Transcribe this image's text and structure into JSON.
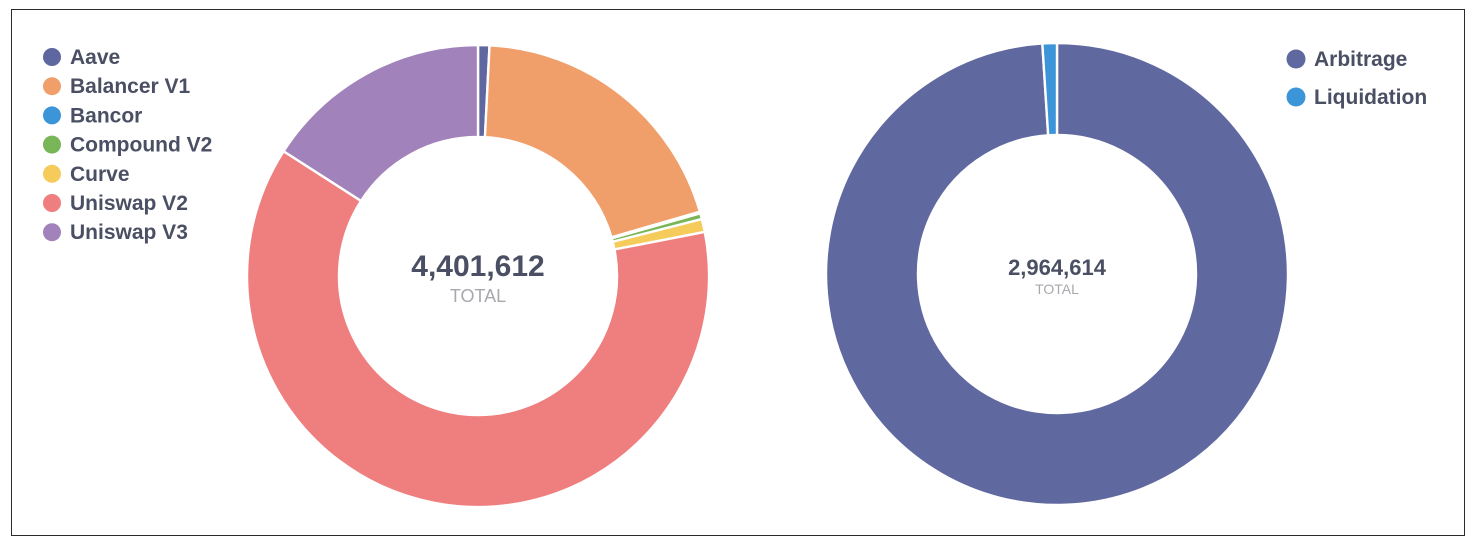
{
  "chart_data": [
    {
      "type": "pie",
      "variant": "donut",
      "center_value": "4,401,612",
      "center_label": "TOTAL",
      "legend_placement": "top-left",
      "categories": [
        "Aave",
        "Balancer V1",
        "Bancor",
        "Compound V2",
        "Curve",
        "Uniswap V2",
        "Uniswap V3"
      ],
      "values": [
        35000,
        868000,
        5000,
        18000,
        40000,
        2735000,
        700612
      ],
      "colors": [
        "#5f67a0",
        "#f09e6a",
        "#3b95d8",
        "#79b657",
        "#f5cb5c",
        "#ef7e7e",
        "#a282ba"
      ]
    },
    {
      "type": "pie",
      "variant": "donut",
      "center_value": "2,964,614",
      "center_label": "TOTAL",
      "legend_placement": "top-right",
      "categories": [
        "Arbitrage",
        "Liquidation"
      ],
      "values": [
        2934614,
        30000
      ],
      "colors": [
        "#6068a0",
        "#3b95d8"
      ]
    }
  ]
}
